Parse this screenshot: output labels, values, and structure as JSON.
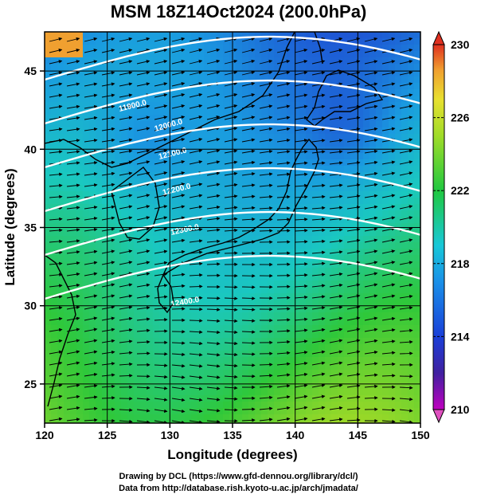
{
  "title": "MSM 18Z14Oct2024 (200.0hPa)",
  "x_axis": {
    "label": "Longitude (degrees)",
    "ticks": [
      "120",
      "125",
      "130",
      "135",
      "140",
      "145",
      "150"
    ]
  },
  "y_axis": {
    "label": "Latitude  (degrees)",
    "ticks": [
      "25",
      "30",
      "35",
      "40",
      "45"
    ]
  },
  "colorbar": {
    "ticks": [
      "230",
      "226",
      "222",
      "218",
      "214",
      "210"
    ],
    "range": [
      210,
      230
    ]
  },
  "contour_labels": [
    "11900.0",
    "12000.0",
    "12100.0",
    "12200.0",
    "12300.0",
    "12400.0"
  ],
  "credits": {
    "line1": "Drawing by DCL (https://www.gfd-dennou.org/library/dcl/)",
    "line2": "Data from http://database.rish.kyoto-u.ac.jp/arch/jmadata/"
  },
  "chart_data": {
    "type": "heatmap",
    "title": "MSM 18Z14Oct2024 (200.0hPa)",
    "xlabel": "Longitude (degrees)",
    "ylabel": "Latitude  (degrees)",
    "xlim": [
      120,
      150
    ],
    "ylim": [
      22.5,
      47.5
    ],
    "x_ticks": [
      120,
      125,
      130,
      135,
      140,
      145,
      150
    ],
    "y_ticks": [
      25,
      30,
      35,
      40,
      45
    ],
    "colorbar_range": [
      210,
      230
    ],
    "colorbar_ticks": [
      210,
      214,
      218,
      222,
      226,
      230
    ],
    "contour_levels": [
      11900,
      12000,
      12100,
      12200,
      12300,
      12400
    ],
    "colors": {
      "cold": "#1f3fd0",
      "cool": "#1a9be0",
      "mid": "#1ac8c0",
      "warm": "#2fc83a",
      "hot": "#c8e020",
      "max": "#e03020",
      "min": "#c020b0"
    }
  }
}
